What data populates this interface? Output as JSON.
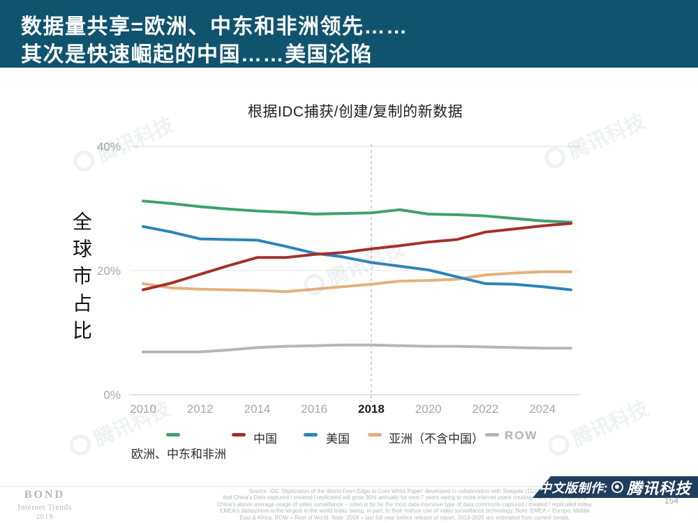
{
  "banner": {
    "line1": "数据量共享=欧洲、中东和非洲领先……",
    "line2": "其次是快速崛起的中国……美国沦陷",
    "bg_color": "#10536f"
  },
  "chart_data": {
    "type": "line",
    "title": "根据IDC捕获/创建/复制的新数据",
    "ylabel": "全球市占比",
    "xlabel": "",
    "x": [
      2010,
      2011,
      2012,
      2013,
      2014,
      2015,
      2016,
      2017,
      2018,
      2019,
      2020,
      2021,
      2022,
      2023,
      2024,
      2025
    ],
    "xticks": [
      2010,
      2012,
      2014,
      2016,
      2018,
      2020,
      2022,
      2024
    ],
    "highlight_xtick": 2018,
    "ytick_values": [
      0,
      20,
      40
    ],
    "ytick_labels": [
      "0%",
      "20%",
      "40%"
    ],
    "ylim": [
      0,
      40
    ],
    "grid": true,
    "legend_position": "bottom",
    "reference_line_x": 2018,
    "series": [
      {
        "name": "欧洲、中东和非洲",
        "color": "#3fa06c",
        "values": [
          31.2,
          30.8,
          30.3,
          29.9,
          29.6,
          29.4,
          29.1,
          29.2,
          29.3,
          29.8,
          29.1,
          29.0,
          28.8,
          28.4,
          28.0,
          27.8
        ]
      },
      {
        "name": "中国",
        "color": "#a3302c",
        "values": [
          16.9,
          18.0,
          19.4,
          20.8,
          22.1,
          22.1,
          22.6,
          22.9,
          23.5,
          24.0,
          24.6,
          25.0,
          26.2,
          26.7,
          27.2,
          27.6
        ]
      },
      {
        "name": "美国",
        "color": "#2c84ba",
        "values": [
          27.1,
          26.2,
          25.1,
          25.0,
          24.9,
          23.9,
          22.8,
          22.2,
          21.3,
          20.7,
          20.1,
          19.0,
          17.9,
          17.8,
          17.4,
          16.9
        ]
      },
      {
        "name": "亚洲（不含中国）",
        "color": "#e3b17c",
        "values": [
          17.9,
          17.2,
          17.0,
          16.9,
          16.8,
          16.6,
          17.0,
          17.4,
          17.8,
          18.3,
          18.4,
          18.6,
          19.3,
          19.6,
          19.8,
          19.8
        ]
      },
      {
        "name": "ROW",
        "color": "#b6b6b6",
        "values": [
          6.9,
          6.9,
          6.9,
          7.2,
          7.6,
          7.8,
          7.9,
          8.0,
          8.0,
          7.9,
          7.8,
          7.8,
          7.7,
          7.6,
          7.5,
          7.5
        ]
      }
    ]
  },
  "watermark": {
    "text": "腾讯科技"
  },
  "footer": {
    "source_lines": [
      "Source: IDC 'Digitization of the World From Edge to Core White Paper' developed in collaboration with Seagate (11/18), IDC D",
      "that China's Data captured / created / replicated will grow 30% annually for next 7 years owing to more Internet users creating more data in China &",
      "China's above average usage of video surveillance – video is by far the most data-intensive type of data commonly captured / created / replicated today.",
      "EMEA's datasphere is the largest in the world today owing, in part, to their mature use of video surveillance technology.  Note: EMEA = Europe, Middle",
      "East & Africa.  ROW = Rest of World.  Note: 2018 = last full year before release of report.  2019-2025 are estimated from current trends."
    ],
    "brand": {
      "name": "BOND",
      "subtitle": "Internet Trends",
      "year": "2019"
    },
    "badge": {
      "prefix": "中文版制作:",
      "brand": "腾讯科技"
    },
    "page_number": "154"
  }
}
